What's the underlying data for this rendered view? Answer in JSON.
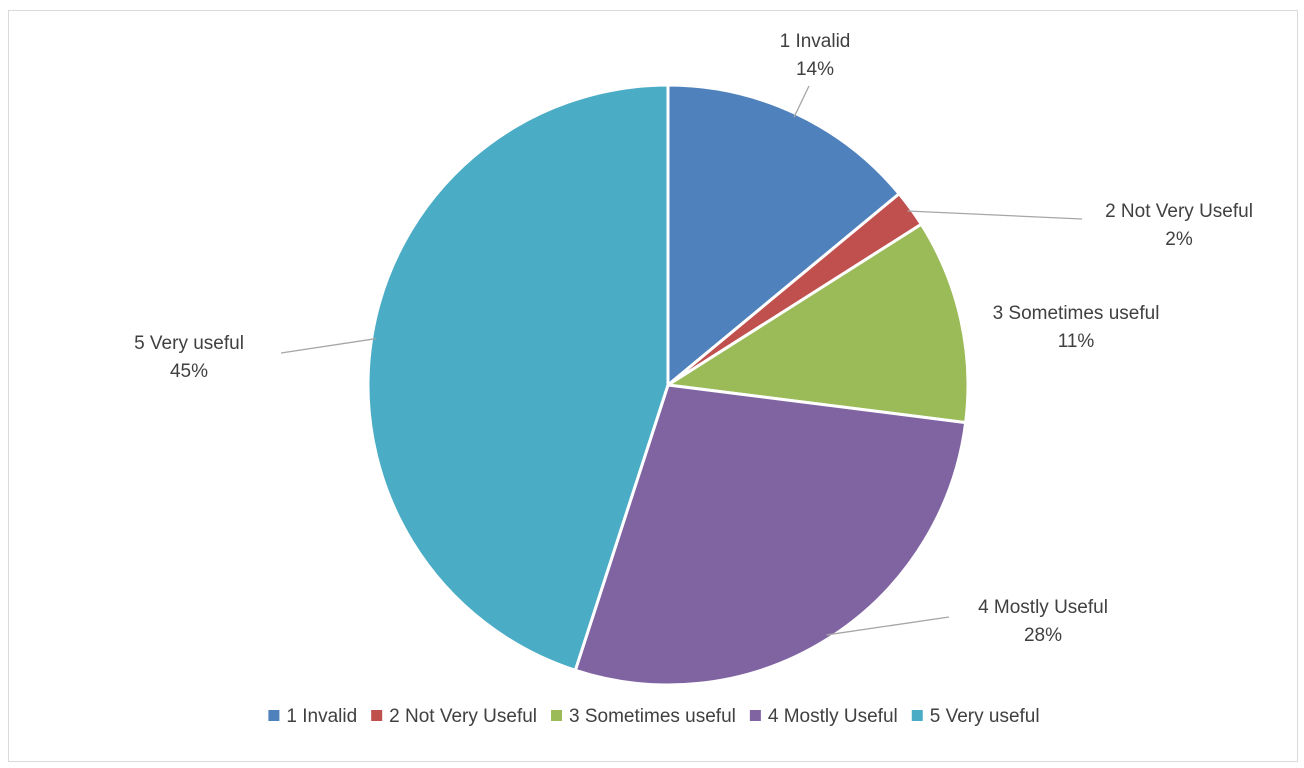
{
  "chart_data": {
    "type": "pie",
    "title": "",
    "categories": [
      "1 Invalid",
      "2 Not Very Useful",
      "3 Sometimes useful",
      "4 Mostly Useful",
      "5 Very useful"
    ],
    "values": [
      14,
      2,
      11,
      28,
      45
    ],
    "value_labels": [
      "14%",
      "2%",
      "11%",
      "28%",
      "45%"
    ],
    "colors": [
      "#4f81bd",
      "#c0504d",
      "#9bbb59",
      "#8064a2",
      "#4bacc6"
    ],
    "start_angle_deg": 0,
    "direction": "clockwise",
    "legend_position": "bottom",
    "data_labels": "outside-with-leader-lines"
  }
}
